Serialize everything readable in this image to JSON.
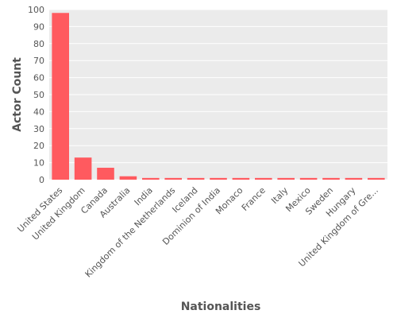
{
  "chart_data": {
    "type": "bar",
    "title": "",
    "xlabel": "Nationalities",
    "ylabel": "Actor Count",
    "ylim": [
      0,
      100
    ],
    "yticks": [
      0,
      10,
      20,
      30,
      40,
      50,
      60,
      70,
      80,
      90,
      100
    ],
    "grid": true,
    "bar_color": "#ff5a5f",
    "background_color": "#ebebeb",
    "grid_color": "#ffffff",
    "categories": [
      "United States",
      "United Kingdom",
      "Canada",
      "Australia",
      "India",
      "Kingdom of the Netherlands",
      "Iceland",
      "Dominion of India",
      "Monaco",
      "France",
      "Italy",
      "Mexico",
      "Sweden",
      "Hungary",
      "United Kingdom of Gre..."
    ],
    "values": [
      98,
      13,
      7,
      2,
      1,
      1,
      1,
      1,
      1,
      1,
      1,
      1,
      1,
      1,
      1
    ]
  }
}
